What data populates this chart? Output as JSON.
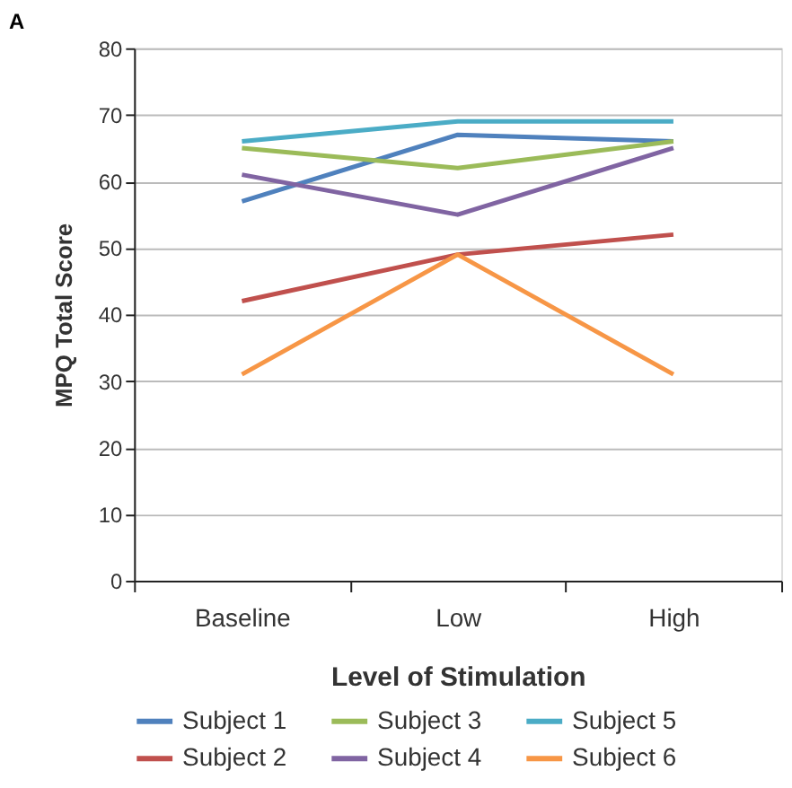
{
  "chart_data": {
    "type": "line",
    "title": "A",
    "xlabel": "Level of Stimulation",
    "ylabel": "MPQ Total Score",
    "categories": [
      "Baseline",
      "Low",
      "High"
    ],
    "series": [
      {
        "name": "Subject 1",
        "color": "#4f81bd",
        "values": [
          57,
          67,
          66
        ]
      },
      {
        "name": "Subject 2",
        "color": "#c0504d",
        "values": [
          42,
          49,
          52
        ]
      },
      {
        "name": "Subject 3",
        "color": "#9bbb59",
        "values": [
          65,
          62,
          66
        ]
      },
      {
        "name": "Subject 4",
        "color": "#8064a2",
        "values": [
          61,
          55,
          65
        ]
      },
      {
        "name": "Subject 5",
        "color": "#4bacc6",
        "values": [
          66,
          69,
          69
        ]
      },
      {
        "name": "Subject 6",
        "color": "#f79646",
        "values": [
          31,
          49,
          31
        ]
      }
    ],
    "ylim": [
      0,
      80
    ],
    "yticks": [
      0,
      10,
      20,
      30,
      40,
      50,
      60,
      70,
      80
    ],
    "grid": "y",
    "legend": "bottom",
    "marker": "none",
    "line_style": "solid"
  }
}
